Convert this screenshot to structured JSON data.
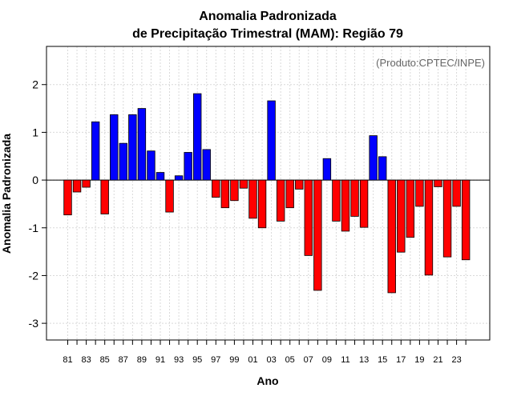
{
  "chart_data": {
    "type": "bar",
    "title": "Anomalia Padronizada",
    "subtitle": "de Precipitação Trimestral (MAM): Região 79",
    "xlabel": "Ano",
    "ylabel": "Anomalia Padronizada",
    "credit": "(Produto:CPTEC/INPE)",
    "ylim": [
      -3.35,
      2.8
    ],
    "yticks": [
      -3,
      -2,
      -1,
      0,
      1,
      2
    ],
    "ytick_labels": [
      "-3",
      "-2",
      "-1",
      "0",
      "1",
      "2"
    ],
    "x_tick_labels": [
      "81",
      "83",
      "85",
      "87",
      "89",
      "91",
      "93",
      "95",
      "97",
      "99",
      "01",
      "03",
      "05",
      "07",
      "09",
      "11",
      "13",
      "15",
      "17",
      "19",
      "21",
      "23"
    ],
    "x_tick_label_every": 2,
    "grid": true,
    "categories": [
      "1981",
      "1982",
      "1983",
      "1984",
      "1985",
      "1986",
      "1987",
      "1988",
      "1989",
      "1990",
      "1991",
      "1992",
      "1993",
      "1994",
      "1995",
      "1996",
      "1997",
      "1998",
      "1999",
      "2000",
      "2001",
      "2002",
      "2003",
      "2004",
      "2005",
      "2006",
      "2007",
      "2008",
      "2009",
      "2010",
      "2011",
      "2012",
      "2013",
      "2014",
      "2015",
      "2016",
      "2017",
      "2018",
      "2019",
      "2020",
      "2021",
      "2022",
      "2023",
      "2024"
    ],
    "values": [
      -0.73,
      -0.25,
      -0.15,
      1.22,
      -0.71,
      1.37,
      0.77,
      1.37,
      1.5,
      0.61,
      0.16,
      -0.67,
      0.09,
      0.58,
      1.81,
      0.64,
      -0.36,
      -0.58,
      -0.43,
      -0.17,
      -0.8,
      -1.0,
      1.66,
      -0.86,
      -0.58,
      -0.19,
      -1.58,
      -2.31,
      0.45,
      -0.86,
      -1.07,
      -0.76,
      -0.99,
      0.93,
      0.49,
      -2.36,
      -1.51,
      -1.2,
      -0.55,
      -1.99,
      -0.14,
      -1.61,
      -0.55,
      -1.67
    ],
    "positive_color": "#0000ff",
    "negative_color": "#ff0000"
  }
}
